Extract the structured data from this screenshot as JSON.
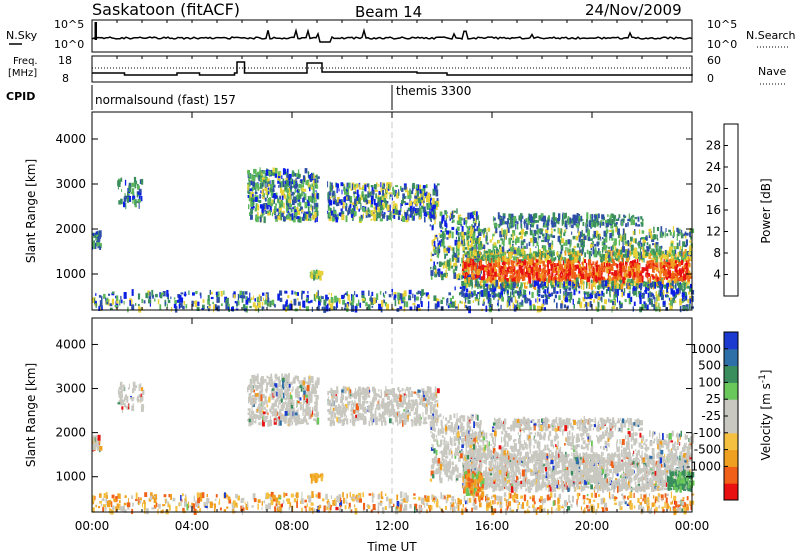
{
  "header": {
    "station": "Saskatoon (fitACF)",
    "beam": "Beam 14",
    "date": "24/Nov/2009"
  },
  "noise_panel": {
    "left_label": "N.Sky",
    "right_label": "N.Search",
    "left_ticks": [
      "10^5",
      "10^0"
    ],
    "right_ticks": [
      "10^5",
      "10^0"
    ]
  },
  "freq_panel": {
    "left_label_1": "Freq.",
    "left_label_2": "[MHz]",
    "right_label": "Nave",
    "left_ticks": [
      "18",
      "8"
    ],
    "right_ticks": [
      "60",
      "0"
    ]
  },
  "cpid": {
    "label": "CPID",
    "modes": [
      {
        "name": "normalsound (fast) 157",
        "start_hour": 0
      },
      {
        "name": "themis 3300",
        "start_hour": 12
      }
    ]
  },
  "time_axis": {
    "label": "Time UT",
    "ticks": [
      "00:00",
      "04:00",
      "08:00",
      "12:00",
      "16:00",
      "20:00",
      "00:00"
    ]
  },
  "colors": {
    "power": [
      "#0a1ee6",
      "#2e4fa8",
      "#3a8e5e",
      "#5bb65c",
      "#e8d23a",
      "#f0a020",
      "#f06018",
      "#e81010"
    ],
    "velocity": [
      "#e81010",
      "#f06018",
      "#f0a020",
      "#f5c040",
      "#c8c8c0",
      "#c8c8c0",
      "#6ac85a",
      "#3a8e5e",
      "#2e6fa8",
      "#1a3ad0"
    ],
    "ground": "#c8c8c0"
  },
  "chart_data": [
    {
      "type": "heatmap",
      "name": "power",
      "ylabel": "Slant Range [km]",
      "yticks": [
        "1000",
        "2000",
        "3000",
        "4000"
      ],
      "ylim": [
        200,
        4600
      ],
      "xlim": [
        0,
        24
      ],
      "colorbar_label": "Power [dB]",
      "colorbar_ticks": [
        "4",
        "8",
        "12",
        "16",
        "20",
        "24",
        "28"
      ],
      "colorbar_range": [
        0,
        32
      ]
    },
    {
      "type": "heatmap",
      "name": "velocity",
      "ylabel": "Slant Range [km]",
      "yticks": [
        "1000",
        "2000",
        "3000",
        "4000"
      ],
      "ylim": [
        200,
        4600
      ],
      "xlim": [
        0,
        24
      ],
      "colorbar_label": "Velocity [m s^-1]",
      "colorbar_ticks": [
        "1000",
        "500",
        "100",
        "25",
        "-25",
        "-100",
        "-500",
        "-1000"
      ]
    }
  ]
}
